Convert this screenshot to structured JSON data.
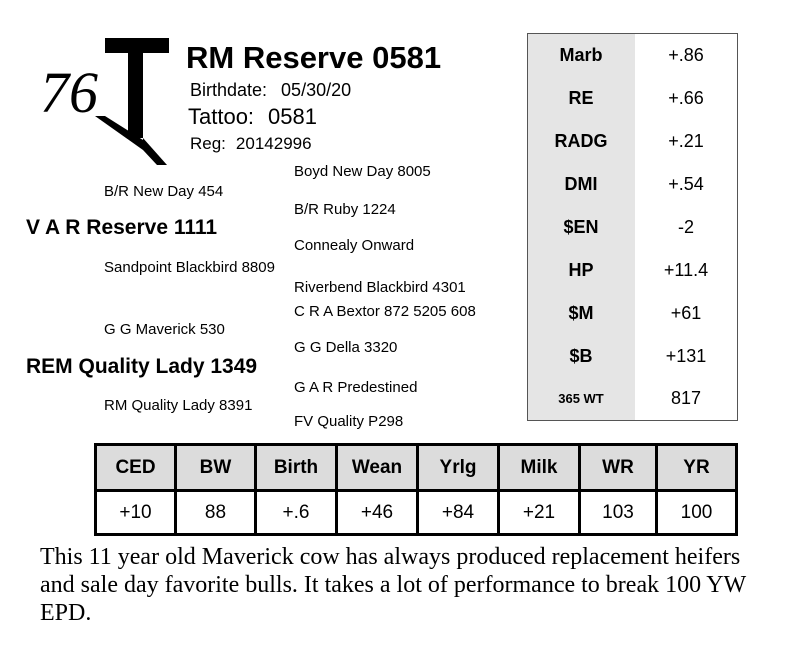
{
  "lot_number": "76",
  "header": {
    "name": "RM Reserve 0581",
    "birthdate_label": "Birthdate:",
    "birthdate": "05/30/20",
    "tattoo_label": "Tattoo:",
    "tattoo": "0581",
    "reg_label": "Reg:",
    "reg": "20142996"
  },
  "pedigree": {
    "sire": "V A R Reserve 1111",
    "sire_sire": "B/R New Day 454",
    "sire_sire_sire": "Boyd New Day 8005",
    "sire_sire_dam": "B/R Ruby 1224",
    "sire_dam": "Sandpoint Blackbird 8809",
    "sire_dam_sire": "Connealy Onward",
    "sire_dam_dam": "Riverbend Blackbird 4301",
    "dam": "REM Quality Lady 1349",
    "dam_sire": "G G Maverick 530",
    "dam_sire_sire": "C R A Bextor 872 5205 608",
    "dam_sire_dam": "G G Della 3320",
    "dam_dam": "RM Quality Lady 8391",
    "dam_dam_sire": "G A R Predestined",
    "dam_dam_dam": "FV Quality P298"
  },
  "epd_side": [
    {
      "label": "Marb",
      "value": "+.86"
    },
    {
      "label": "RE",
      "value": "+.66"
    },
    {
      "label": "RADG",
      "value": "+.21"
    },
    {
      "label": "DMI",
      "value": "+.54"
    },
    {
      "label": "$EN",
      "value": "-2"
    },
    {
      "label": "HP",
      "value": "+11.4"
    },
    {
      "label": "$M",
      "value": "+61"
    },
    {
      "label": "$B",
      "value": "+131"
    },
    {
      "label": "365 WT",
      "value": "817"
    }
  ],
  "epd_bottom": {
    "headers": [
      "CED",
      "BW",
      "Birth",
      "Wean",
      "Yrlg",
      "Milk",
      "WR",
      "YR"
    ],
    "values": [
      "+10",
      "88",
      "+.6",
      "+46",
      "+84",
      "+21",
      "103",
      "100"
    ]
  },
  "comment": "This 11 year old Maverick cow has always produced replacement heifers and sale day favorite bulls. It takes a lot of performance to break 100 YW EPD."
}
